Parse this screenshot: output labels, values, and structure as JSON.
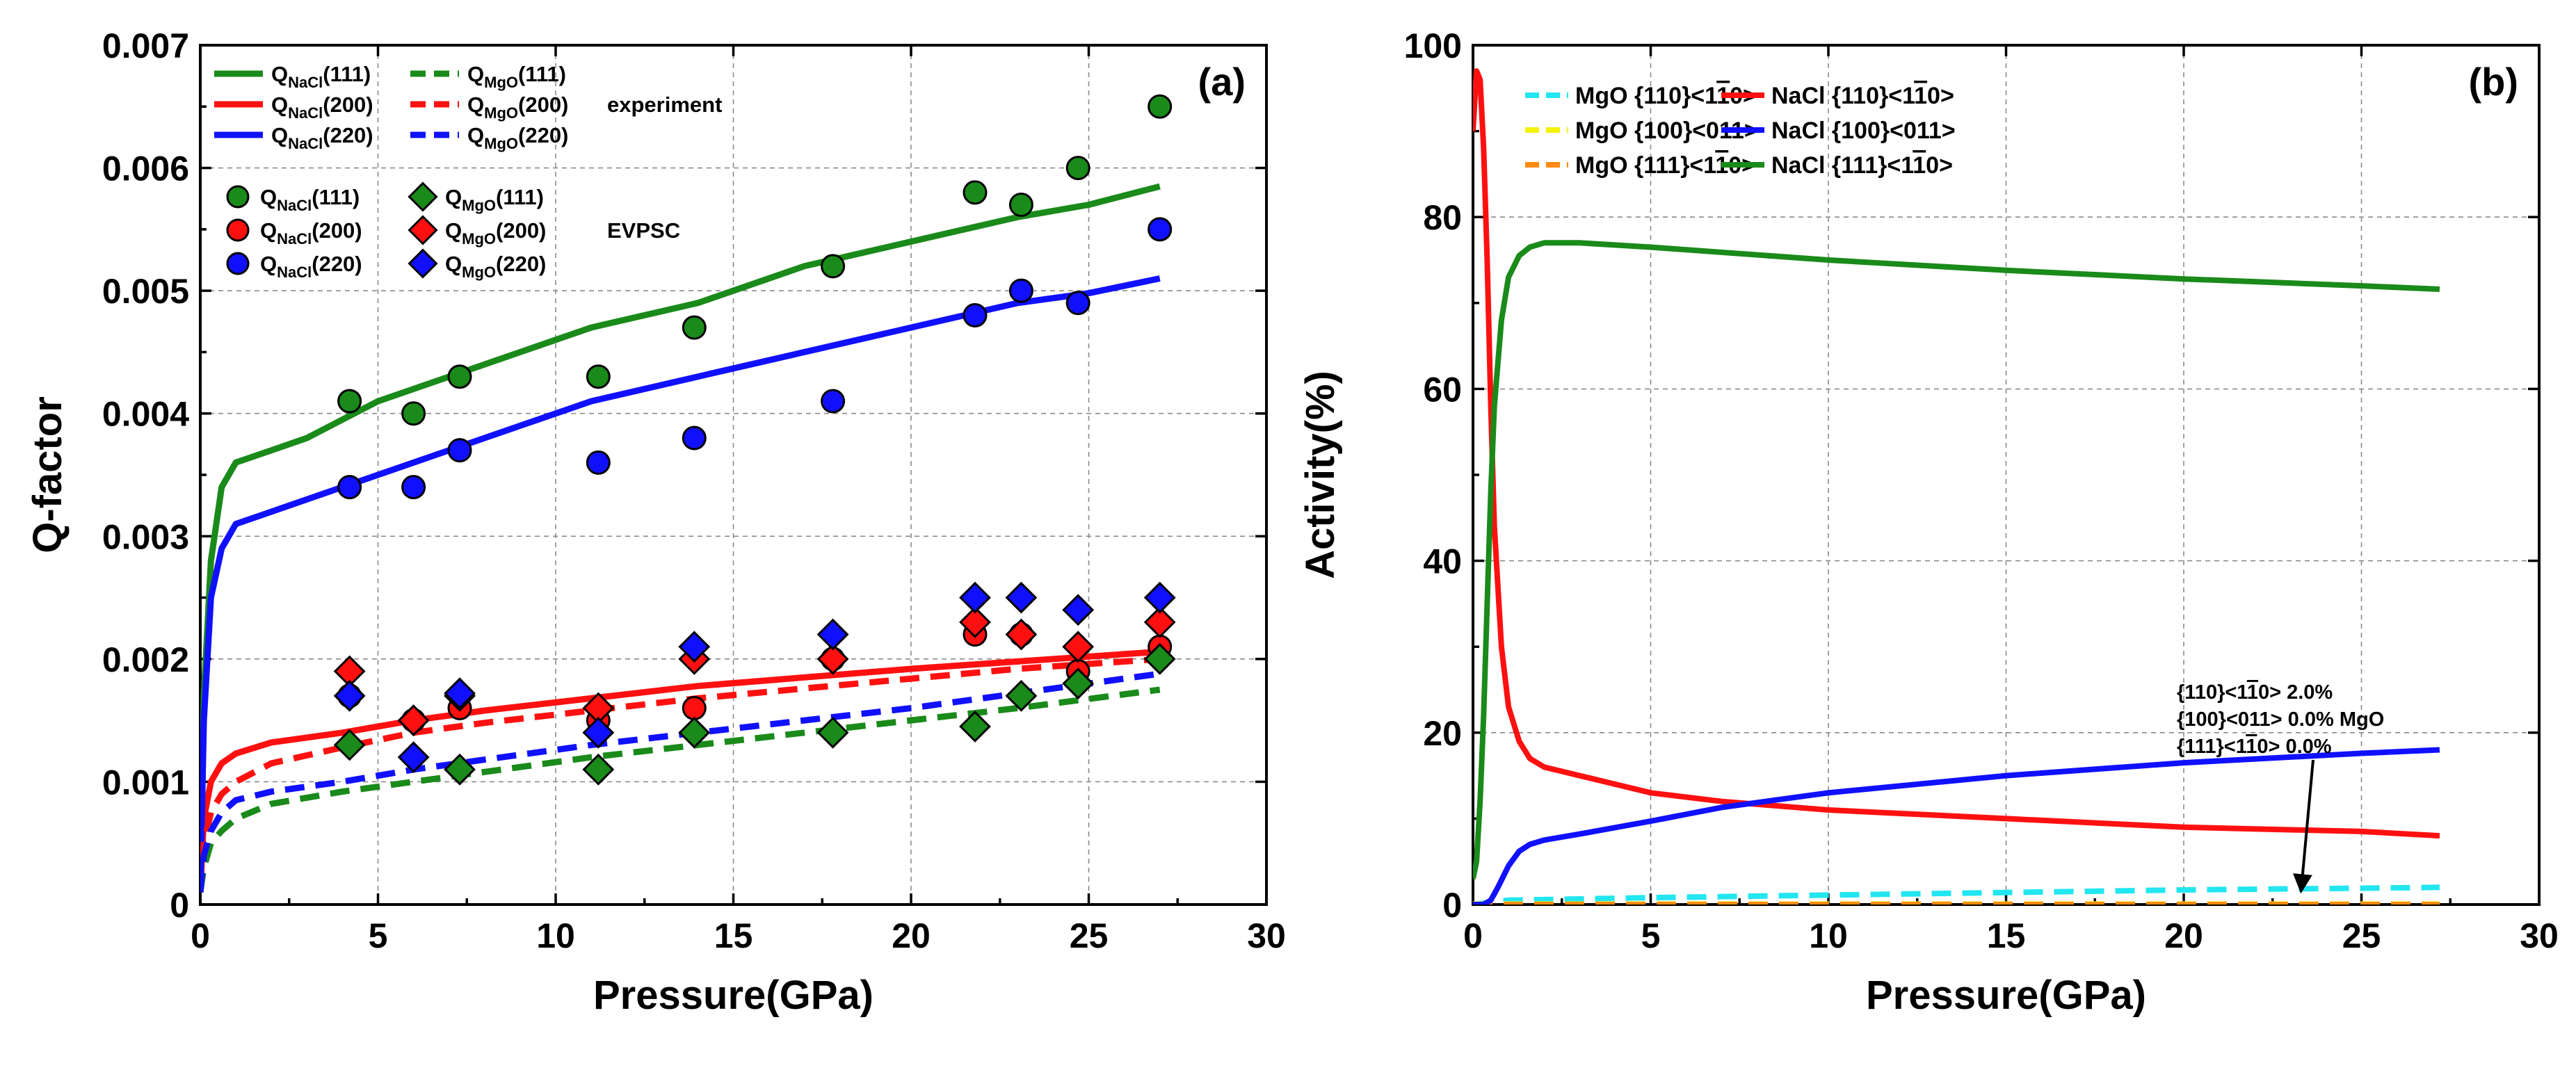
{
  "chart_data": [
    {
      "panel": "(a)",
      "type": "line+scatter",
      "xlabel": "Pressure(GPa)",
      "ylabel": "Q-factor",
      "xlim": [
        0,
        30
      ],
      "ylim": [
        0,
        0.007
      ],
      "xticks": [
        "0",
        "5",
        "10",
        "15",
        "20",
        "25",
        "30"
      ],
      "yticks": [
        "0",
        "0.001",
        "0.002",
        "0.003",
        "0.004",
        "0.005",
        "0.006",
        "0.007"
      ],
      "grid": true,
      "legend_group_labels": {
        "lines": "experiment",
        "markers": "EVPSC"
      },
      "lines": [
        {
          "base": "Q",
          "sub": "NaCl",
          "hkl": "(111)",
          "color": "#1a8a1a",
          "dash": false,
          "x": [
            0,
            0.1,
            0.3,
            0.6,
            1,
            2,
            3,
            5,
            8,
            11,
            14,
            17,
            20,
            23,
            25,
            27
          ],
          "y": [
            0.0001,
            0.0017,
            0.0028,
            0.0034,
            0.0036,
            0.0037,
            0.0038,
            0.0041,
            0.0044,
            0.0047,
            0.0049,
            0.0052,
            0.0054,
            0.0056,
            0.0057,
            0.00585
          ]
        },
        {
          "base": "Q",
          "sub": "NaCl",
          "hkl": "(200)",
          "color": "#ff1010",
          "dash": false,
          "x": [
            0,
            0.1,
            0.3,
            0.6,
            1,
            2,
            4,
            6,
            8,
            11,
            14,
            17,
            20,
            23,
            27
          ],
          "y": [
            0.0001,
            0.0007,
            0.001,
            0.00115,
            0.00123,
            0.00132,
            0.0014,
            0.0015,
            0.00158,
            0.00168,
            0.00178,
            0.00185,
            0.00192,
            0.00198,
            0.00206
          ]
        },
        {
          "base": "Q",
          "sub": "NaCl",
          "hkl": "(220)",
          "color": "#1010ff",
          "dash": false,
          "x": [
            0,
            0.1,
            0.3,
            0.6,
            1,
            2,
            3,
            5,
            8,
            11,
            14,
            17,
            20,
            23,
            25,
            27
          ],
          "y": [
            0.0001,
            0.0015,
            0.0025,
            0.0029,
            0.0031,
            0.0032,
            0.0033,
            0.0035,
            0.0038,
            0.0041,
            0.0043,
            0.0045,
            0.0047,
            0.0049,
            0.00498,
            0.0051
          ]
        },
        {
          "base": "Q",
          "sub": "MgO",
          "hkl": "(111)",
          "color": "#1a8a1a",
          "dash": true,
          "x": [
            0,
            0.1,
            0.3,
            0.6,
            1,
            2,
            4,
            6,
            8,
            11,
            14,
            17,
            20,
            23,
            27
          ],
          "y": [
            0.0001,
            0.0003,
            0.0005,
            0.0006,
            0.0007,
            0.00082,
            0.00092,
            0.001,
            0.00108,
            0.0012,
            0.0013,
            0.0014,
            0.0015,
            0.0016,
            0.00175
          ]
        },
        {
          "base": "Q",
          "sub": "MgO",
          "hkl": "(200)",
          "color": "#ff1010",
          "dash": true,
          "x": [
            0,
            0.1,
            0.3,
            0.6,
            1,
            2,
            4,
            6,
            8,
            11,
            14,
            17,
            20,
            23,
            27
          ],
          "y": [
            0.0001,
            0.0005,
            0.00075,
            0.0009,
            0.001,
            0.00115,
            0.00128,
            0.0014,
            0.00148,
            0.00158,
            0.00168,
            0.00176,
            0.00184,
            0.00192,
            0.002
          ]
        },
        {
          "base": "Q",
          "sub": "MgO",
          "hkl": "(220)",
          "color": "#1010ff",
          "dash": true,
          "x": [
            0,
            0.1,
            0.3,
            0.6,
            1,
            2,
            4,
            6,
            8,
            11,
            14,
            17,
            20,
            23,
            27
          ],
          "y": [
            0.0001,
            0.0004,
            0.0006,
            0.00075,
            0.00085,
            0.00092,
            0.001,
            0.0011,
            0.00118,
            0.0013,
            0.0014,
            0.0015,
            0.0016,
            0.00172,
            0.00188
          ]
        }
      ],
      "markers": [
        {
          "base": "Q",
          "sub": "NaCl",
          "hkl": "(111)",
          "shape": "circle",
          "color": "#1a8a1a",
          "x": [
            4.2,
            6,
            7.3,
            11.2,
            13.9,
            17.8,
            21.8,
            23.1,
            24.7,
            27
          ],
          "y": [
            0.0041,
            0.004,
            0.0043,
            0.0043,
            0.0047,
            0.0052,
            0.0058,
            0.0057,
            0.006,
            0.0065
          ]
        },
        {
          "base": "Q",
          "sub": "NaCl",
          "hkl": "(200)",
          "shape": "circle",
          "color": "#ff1010",
          "x": [
            4.2,
            6,
            7.3,
            11.2,
            13.9,
            17.8,
            21.8,
            23.1,
            24.7,
            27
          ],
          "y": [
            0.0017,
            0.0015,
            0.0016,
            0.0015,
            0.0016,
            0.002,
            0.0022,
            0.0022,
            0.0019,
            0.0021
          ]
        },
        {
          "base": "Q",
          "sub": "NaCl",
          "hkl": "(220)",
          "shape": "circle",
          "color": "#1010ff",
          "x": [
            4.2,
            6,
            7.3,
            11.2,
            13.9,
            17.8,
            21.8,
            23.1,
            24.7,
            27
          ],
          "y": [
            0.0034,
            0.0034,
            0.0037,
            0.0036,
            0.0038,
            0.0041,
            0.0048,
            0.005,
            0.0049,
            0.0055
          ]
        },
        {
          "base": "Q",
          "sub": "MgO",
          "hkl": "(111)",
          "shape": "diamond",
          "color": "#1a8a1a",
          "x": [
            4.2,
            6,
            7.3,
            11.2,
            13.9,
            17.8,
            21.8,
            23.1,
            24.7,
            27
          ],
          "y": [
            0.0013,
            0.0015,
            0.0011,
            0.0011,
            0.0014,
            0.0014,
            0.00145,
            0.0017,
            0.0018,
            0.002
          ]
        },
        {
          "base": "Q",
          "sub": "MgO",
          "hkl": "(200)",
          "shape": "diamond",
          "color": "#ff1010",
          "x": [
            4.2,
            6,
            7.3,
            11.2,
            13.9,
            17.8,
            21.8,
            23.1,
            24.7,
            27
          ],
          "y": [
            0.0019,
            0.0015,
            0.0017,
            0.0016,
            0.002,
            0.002,
            0.0023,
            0.0022,
            0.0021,
            0.0023
          ]
        },
        {
          "base": "Q",
          "sub": "MgO",
          "hkl": "(220)",
          "shape": "diamond",
          "color": "#1010ff",
          "x": [
            4.2,
            6,
            7.3,
            11.2,
            13.9,
            17.8,
            21.8,
            23.1,
            24.7,
            27
          ],
          "y": [
            0.0017,
            0.0012,
            0.00172,
            0.0014,
            0.0021,
            0.0022,
            0.0025,
            0.0025,
            0.0024,
            0.0025
          ]
        }
      ]
    },
    {
      "panel": "(b)",
      "type": "line",
      "xlabel": "Pressure(GPa)",
      "ylabel": "Activity(%)",
      "xlim": [
        0,
        30
      ],
      "ylim": [
        0,
        100
      ],
      "xticks": [
        "0",
        "5",
        "10",
        "15",
        "20",
        "25",
        "30"
      ],
      "yticks": [
        "0",
        "20",
        "40",
        "60",
        "80",
        "100"
      ],
      "grid": true,
      "series": [
        {
          "label": "MgO {110}<1",
          "overbar": "1",
          "tail": "0>",
          "color": "#22e6f0",
          "dash": true,
          "x": [
            0,
            0.5,
            1,
            5,
            10,
            15,
            20,
            25,
            27.2
          ],
          "y": [
            0,
            0.3,
            0.5,
            0.8,
            1.1,
            1.4,
            1.7,
            1.9,
            2.0
          ]
        },
        {
          "label": "MgO {100}<011>",
          "overbar": "",
          "tail": "",
          "color": "#f2f20a",
          "dash": true,
          "x": [
            0,
            27.2
          ],
          "y": [
            0.05,
            0.05
          ]
        },
        {
          "label": "MgO {111}<1",
          "overbar": "1",
          "tail": "0>",
          "color": "#ff8a10",
          "dash": true,
          "x": [
            0,
            27.2
          ],
          "y": [
            0,
            0
          ]
        },
        {
          "label": "NaCl {110}<1",
          "overbar": "1",
          "tail": "0>",
          "color": "#ff1010",
          "dash": false,
          "x": [
            0,
            0.1,
            0.2,
            0.3,
            0.4,
            0.5,
            0.6,
            0.8,
            1,
            1.3,
            1.6,
            2,
            3,
            5,
            7,
            10,
            15,
            20,
            25,
            27.2
          ],
          "y": [
            90,
            97,
            96,
            88,
            75,
            58,
            44,
            30,
            23,
            19,
            17,
            16,
            15,
            13,
            12,
            11,
            10,
            9,
            8.5,
            8
          ]
        },
        {
          "label": "NaCl {100}<011>",
          "overbar": "",
          "tail": "",
          "color": "#1010ff",
          "dash": false,
          "x": [
            0,
            0.3,
            0.5,
            0.7,
            1,
            1.3,
            1.6,
            2,
            3,
            5,
            7,
            10,
            15,
            20,
            25,
            27.2
          ],
          "y": [
            0,
            0,
            0.5,
            2,
            4.5,
            6.2,
            7,
            7.5,
            8.2,
            9.7,
            11.3,
            13,
            15,
            16.5,
            17.6,
            18
          ]
        },
        {
          "label": "NaCl {111}<1",
          "overbar": "1",
          "tail": "0>",
          "color": "#1a8a1a",
          "dash": false,
          "x": [
            0,
            0.1,
            0.2,
            0.3,
            0.4,
            0.5,
            0.6,
            0.8,
            1,
            1.3,
            1.6,
            2,
            3,
            5,
            10,
            15,
            20,
            25,
            27.2
          ],
          "y": [
            3,
            5,
            12,
            22,
            35,
            48,
            58,
            68,
            73,
            75.5,
            76.5,
            77,
            77,
            76.5,
            75,
            73.8,
            72.8,
            72,
            71.6
          ]
        }
      ],
      "annotation": {
        "lines": [
          {
            "pre": "{110}<1",
            "bar": "1",
            "post": "0> 2.0%"
          },
          {
            "pre": "{100}<011> 0.0% MgO",
            "bar": "",
            "post": ""
          },
          {
            "pre": "{111}<1",
            "bar": "1",
            "post": "0> 0.0%"
          }
        ],
        "arrow_target": [
          23.3,
          1.5
        ]
      }
    }
  ]
}
